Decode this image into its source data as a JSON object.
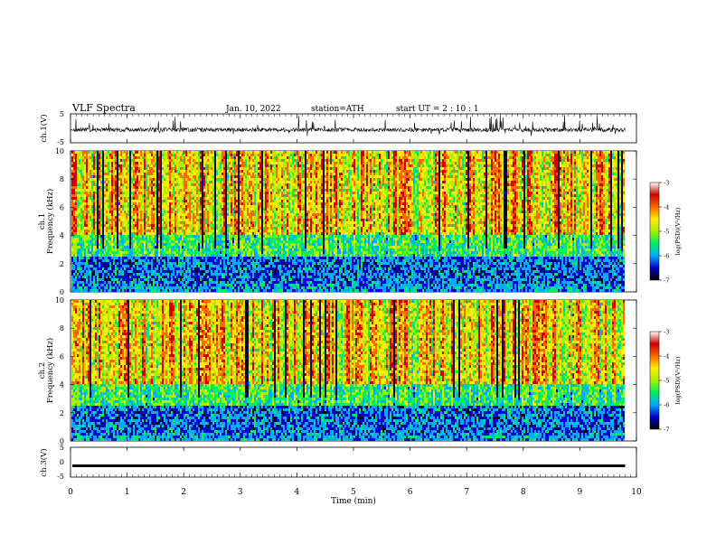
{
  "header": {
    "title": "VLF  Spectra",
    "date": "Jan.  10,  2022",
    "station": "station=ATH",
    "start": "start  UT  =    2  : 10 : 1"
  },
  "colorbar": {
    "label": "log(PSD)(V²/Hz)",
    "ticks": [
      "-3",
      "-4",
      "-5",
      "-6",
      "-7"
    ],
    "colors": [
      "#000000",
      "#0000cc",
      "#00aaff",
      "#00ee66",
      "#aaee00",
      "#ffee00",
      "#ff6600",
      "#cc0000",
      "#ffffff"
    ]
  },
  "chart_data": [
    {
      "type": "line",
      "name": "ch1-waveform",
      "ylabel": "ch.1(V)",
      "ylim": [
        -5,
        5
      ],
      "y_ticks": [
        "5",
        "-5"
      ],
      "xlim": [
        0,
        10
      ],
      "description_values": {
        "baseline_v": -0.5,
        "typical_amplitude_v": 1.5
      }
    },
    {
      "type": "heatmap",
      "name": "ch1-spectrogram",
      "ylabel": "ch.1\nFrequency  (kHz)",
      "ylabel_line1": "ch.1",
      "ylabel_line2": "Frequency  (kHz)",
      "ylim": [
        0,
        10
      ],
      "y_ticks": [
        "0",
        "2",
        "4",
        "6",
        "8",
        "10"
      ],
      "xlim": [
        0,
        9.8
      ],
      "zlim": [
        -7,
        -3
      ]
    },
    {
      "type": "heatmap",
      "name": "ch2-spectrogram",
      "ylabel_line1": "ch.2",
      "ylabel_line2": "Frequency  (kHz)",
      "ylim": [
        0,
        10
      ],
      "y_ticks": [
        "0",
        "2",
        "4",
        "6",
        "8",
        "10"
      ],
      "xlim": [
        0,
        9.8
      ],
      "zlim": [
        -7,
        -3
      ]
    },
    {
      "type": "line",
      "name": "ch3-waveform",
      "ylabel": "ch.3(V)",
      "ylim": [
        -5,
        5
      ],
      "y_ticks": [
        "5",
        "0",
        "-5"
      ],
      "xlim": [
        0,
        10
      ],
      "description_values": {
        "constant_v": -1.2
      }
    }
  ],
  "xaxis": {
    "label": "Time  (min)",
    "ticks": [
      "0",
      "1",
      "2",
      "3",
      "4",
      "5",
      "6",
      "7",
      "8",
      "9",
      "10"
    ],
    "range": [
      0,
      10
    ]
  }
}
